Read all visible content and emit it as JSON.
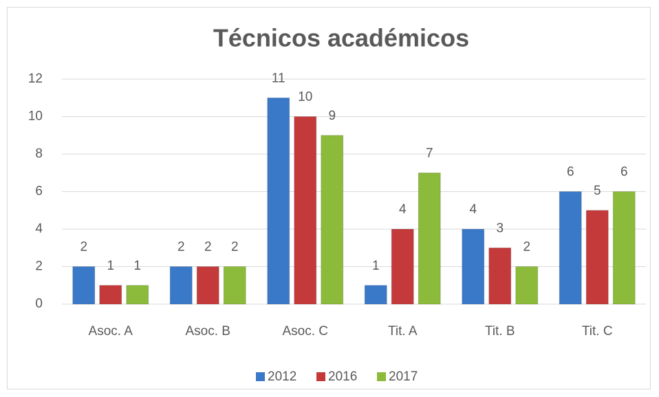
{
  "chart_data": {
    "type": "bar",
    "title": "Técnicos académicos",
    "categories": [
      "Asoc. A",
      "Asoc. B",
      "Asoc. C",
      "Tit. A",
      "Tit. B",
      "Tit. C"
    ],
    "series": [
      {
        "name": "2012",
        "color": "#3a78c8",
        "values": [
          2,
          2,
          11,
          1,
          4,
          6
        ]
      },
      {
        "name": "2016",
        "color": "#c43a3b",
        "values": [
          1,
          2,
          10,
          4,
          3,
          5
        ]
      },
      {
        "name": "2017",
        "color": "#8cba3a",
        "values": [
          1,
          2,
          9,
          7,
          2,
          6
        ]
      }
    ],
    "ylim": [
      0,
      12
    ],
    "yticks": [
      0,
      2,
      4,
      6,
      8,
      10,
      12
    ],
    "grid": true,
    "legend": "bottom"
  }
}
